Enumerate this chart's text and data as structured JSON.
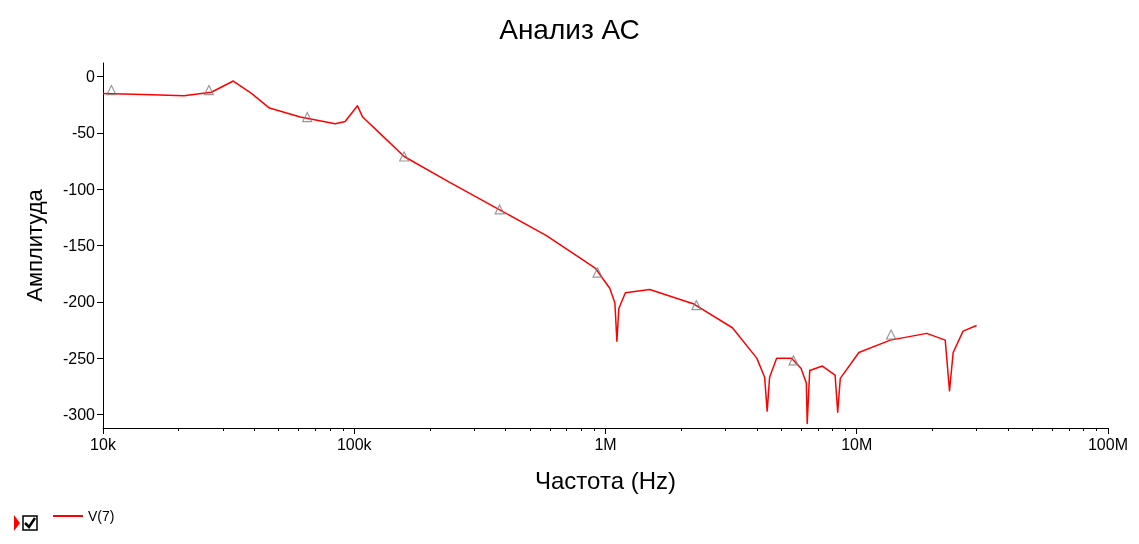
{
  "chart_data": {
    "type": "line",
    "title": "Анализ АС",
    "xlabel": "Частота (Hz)",
    "ylabel": "Амплитуда",
    "log": "x",
    "grid": false,
    "legend": "bottom left",
    "xlim": [
      10000,
      100000000
    ],
    "xticks": [
      {
        "value": 10000,
        "label": "10k"
      },
      {
        "value": 100000,
        "label": "100k"
      },
      {
        "value": 1000000,
        "label": "1M"
      },
      {
        "value": 10000000,
        "label": "10M"
      },
      {
        "value": 100000000,
        "label": "100M"
      }
    ],
    "ylim": [
      -312,
      12
    ],
    "yticks": [
      0,
      -50,
      -100,
      -150,
      -200,
      -250,
      -300
    ],
    "series": [
      {
        "name": "V(7)",
        "color": "#ff0000",
        "marker": "none",
        "line_style": "solid",
        "x": [
          10000,
          14500,
          21000,
          27000,
          33000,
          39000,
          46000,
          61000,
          84000,
          92000,
          103000,
          108000,
          126000,
          158000,
          236000,
          370000,
          580000,
          910000,
          1040000,
          1090000,
          1110000,
          1130000,
          1200000,
          1500000,
          2250000,
          3200000,
          4000000,
          4300000,
          4400000,
          4500000,
          4800000,
          5500000,
          6000000,
          6300000,
          6350000,
          6500000,
          7300000,
          8200000,
          8400000,
          8600000,
          10200000,
          13600000,
          19000000,
          22500000,
          23400000,
          24200000,
          26500000,
          30000000
        ],
        "values": [
          -15,
          -16,
          -17,
          -14,
          -4,
          -15,
          -28,
          -36,
          -42,
          -40,
          -26,
          -36,
          -50,
          -71,
          -93,
          -117,
          -141,
          -170,
          -188,
          -201,
          -235,
          -206,
          -192,
          -189,
          -202,
          -223,
          -250,
          -267,
          -297,
          -267,
          -250,
          -250,
          -259,
          -272,
          -308,
          -261,
          -257,
          -265,
          -298,
          -268,
          -245,
          -234,
          -228,
          -234,
          -279,
          -245,
          -226,
          -221
        ]
      },
      {
        "type": "scatter",
        "color": "#808080",
        "marker": "triangle",
        "x": [
          10800,
          26400,
          65000,
          158000,
          379000,
          930000,
          2300000,
          5600000,
          13700000
        ],
        "values": [
          -12,
          -12,
          -36,
          -71,
          -118,
          -174,
          -203,
          -252,
          -229
        ]
      }
    ]
  }
}
